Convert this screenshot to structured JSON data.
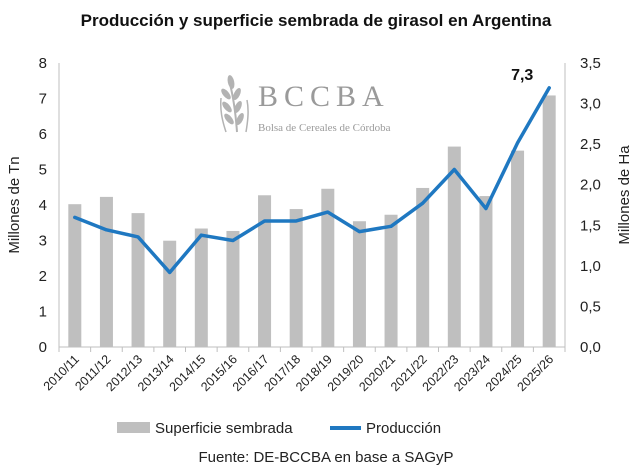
{
  "title": "Producción y superficie sembrada de girasol en Argentina",
  "source": "Fuente: DE-BCCBA en base a SAGyP",
  "watermark": {
    "letters": "BCCBA",
    "subtitle": "Bolsa de Cereales de Córdoba"
  },
  "callout": "7,3",
  "legend": {
    "bars_label": "Superficie sembrada",
    "line_label": "Producción",
    "placement": "bottom"
  },
  "colors": {
    "bars": "#bfbfbf",
    "line": "#1f78c1",
    "axis": "#bfbfbf"
  },
  "chart_data": {
    "type": "bar",
    "title": "Producción y superficie sembrada de girasol en Argentina",
    "categories": [
      "2010/11",
      "2011/12",
      "2012/13",
      "2013/14",
      "2014/15",
      "2015/16",
      "2016/17",
      "2017/18",
      "2018/19",
      "2019/20",
      "2020/21",
      "2021/22",
      "2022/23",
      "2023/24",
      "2024/25",
      "2025/26"
    ],
    "ylabel": "Millones de Tn",
    "y2label": "Millones de Ha",
    "ylim": [
      0,
      8
    ],
    "y2lim": [
      0,
      3.5
    ],
    "yticks": [
      "0",
      "1",
      "2",
      "3",
      "4",
      "5",
      "6",
      "7",
      "8"
    ],
    "y2ticks": [
      "0,0",
      "0,5",
      "1,0",
      "1,5",
      "2,0",
      "2,5",
      "3,0",
      "3,5"
    ],
    "grid": false,
    "series": [
      {
        "name": "Superficie sembrada",
        "type": "bar",
        "axis": "right",
        "values": [
          1.76,
          1.85,
          1.65,
          1.31,
          1.46,
          1.43,
          1.87,
          1.7,
          1.95,
          1.55,
          1.63,
          1.96,
          2.47,
          1.86,
          2.42,
          3.1
        ]
      },
      {
        "name": "Producción",
        "type": "line",
        "axis": "left",
        "values": [
          3.65,
          3.3,
          3.1,
          2.1,
          3.15,
          3.0,
          3.55,
          3.55,
          3.8,
          3.25,
          3.4,
          4.05,
          5.0,
          3.9,
          5.75,
          7.3
        ]
      }
    ]
  }
}
